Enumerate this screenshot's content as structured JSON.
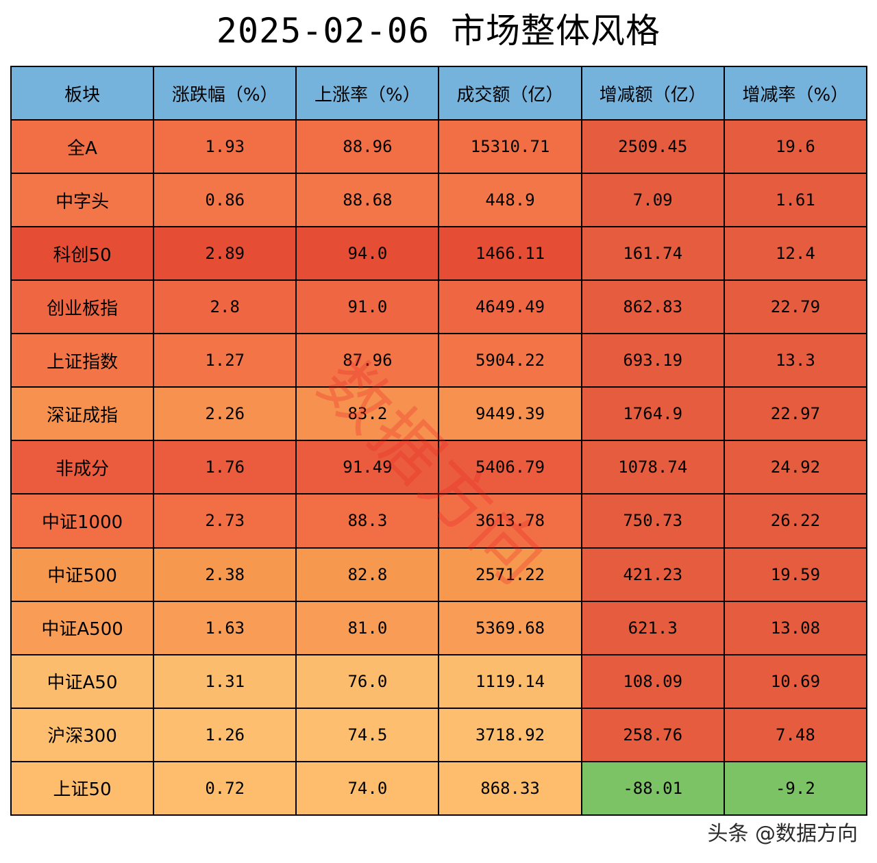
{
  "title": "2025-02-06  市场整体风格",
  "watermark": "数据方向",
  "footer": "头条 @数据方向",
  "colors": {
    "header": "#75b2dc",
    "positive_scale": [
      "#fdbe6f",
      "#e54a33"
    ],
    "negative": "#7cc365"
  },
  "chart_data": {
    "type": "table",
    "title": "2025-02-06  市场整体风格",
    "columns": [
      "板块",
      "涨跌幅（%）",
      "上涨率（%）",
      "成交额（亿）",
      "增减额（亿）",
      "增减率（%）"
    ],
    "rows": [
      [
        "全A",
        "1.93",
        "88.96",
        "15310.71",
        "2509.45",
        "19.6"
      ],
      [
        "中字头",
        "0.86",
        "88.68",
        "448.9",
        "7.09",
        "1.61"
      ],
      [
        "科创50",
        "2.89",
        "94.0",
        "1466.11",
        "161.74",
        "12.4"
      ],
      [
        "创业板指",
        "2.8",
        "91.0",
        "4649.49",
        "862.83",
        "22.79"
      ],
      [
        "上证指数",
        "1.27",
        "87.96",
        "5904.22",
        "693.19",
        "13.3"
      ],
      [
        "深证成指",
        "2.26",
        "83.2",
        "9449.39",
        "1764.9",
        "22.97"
      ],
      [
        "非成分",
        "1.76",
        "91.49",
        "5406.79",
        "1078.74",
        "24.92"
      ],
      [
        "中证1000",
        "2.73",
        "88.3",
        "3613.78",
        "750.73",
        "26.22"
      ],
      [
        "中证500",
        "2.38",
        "82.8",
        "2571.22",
        "421.23",
        "19.59"
      ],
      [
        "中证A500",
        "1.63",
        "81.0",
        "5369.68",
        "621.3",
        "13.08"
      ],
      [
        "中证A50",
        "1.31",
        "76.0",
        "1119.14",
        "108.09",
        "10.69"
      ],
      [
        "沪深300",
        "1.26",
        "74.5",
        "3718.92",
        "258.76",
        "7.48"
      ],
      [
        "上证50",
        "0.72",
        "74.0",
        "868.33",
        "-88.01",
        "-9.2"
      ]
    ],
    "row_colors": [
      "#f26f45",
      "#f37648",
      "#e54e35",
      "#ef6643",
      "#f37547",
      "#f6914f",
      "#ea5c3d",
      "#f26f45",
      "#f7984f",
      "#f89c56",
      "#fcbc6e",
      "#fdbf6f",
      "#fdbd6d"
    ],
    "change_colors": [
      "#e55c3e",
      "#e55c3e",
      "#e55c3e",
      "#e55c3e",
      "#e55c3e",
      "#e55c3e",
      "#e55c3e",
      "#e55c3e",
      "#e55c3e",
      "#e55c3e",
      "#e55c3e",
      "#e55c3e",
      "#7cc365"
    ]
  }
}
